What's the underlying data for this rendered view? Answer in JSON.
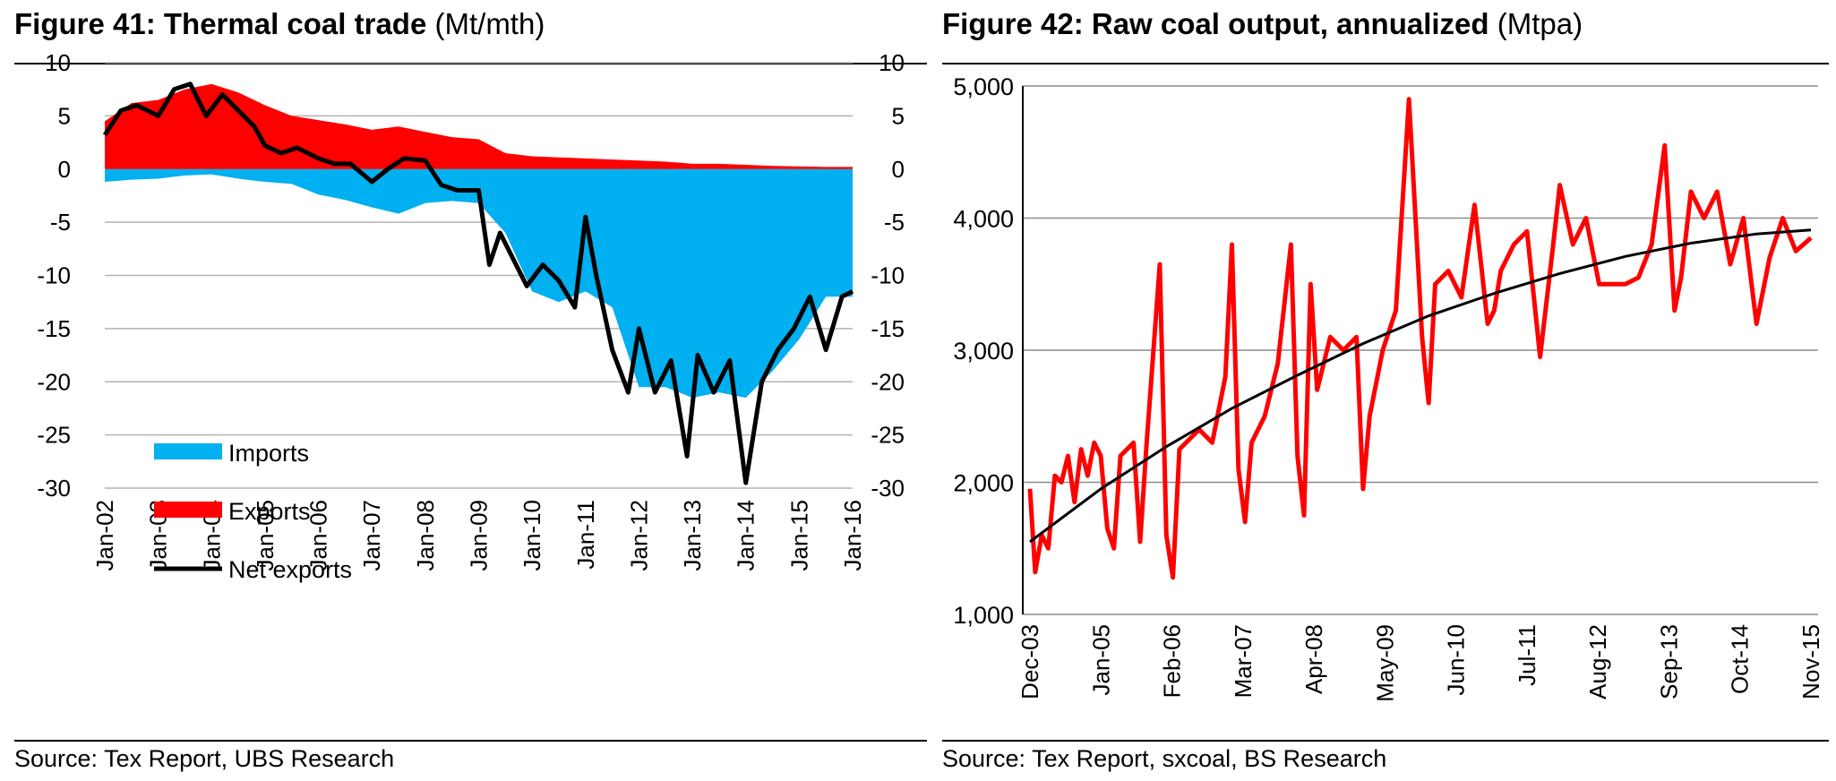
{
  "chart_data": [
    {
      "type": "area",
      "figure_label": "Figure 41:",
      "title": "Thermal coal trade",
      "unit": "(Mt/mth)",
      "source": "Source:  Tex Report, UBS Research",
      "ylim": [
        -30,
        10
      ],
      "y_ticks": [
        "10",
        "5",
        "0",
        "-5",
        "-10",
        "-15",
        "-20",
        "-25",
        "-30"
      ],
      "y_tick_values": [
        10,
        5,
        0,
        -5,
        -10,
        -15,
        -20,
        -25,
        -30
      ],
      "x_tick_labels": [
        "Jan-02",
        "Jan-03",
        "Jan-04",
        "Jan-05",
        "Jan-06",
        "Jan-07",
        "Jan-08",
        "Jan-09",
        "Jan-10",
        "Jan-11",
        "Jan-12",
        "Jan-13",
        "Jan-14",
        "Jan-15",
        "Jan-16"
      ],
      "x_range": [
        2002,
        2016
      ],
      "grid": true,
      "legend_position": "bottom-left",
      "colors": {
        "imports": "#00b0f0",
        "exports": "#ff0000",
        "net_exports": "#000000"
      },
      "series": [
        {
          "name": "Imports",
          "kind": "area",
          "x": [
            2002.0,
            2002.5,
            2003.0,
            2003.5,
            2004.0,
            2004.5,
            2005.0,
            2005.5,
            2006.0,
            2006.5,
            2007.0,
            2007.5,
            2008.0,
            2008.5,
            2009.0,
            2009.5,
            2010.0,
            2010.5,
            2011.0,
            2011.5,
            2012.0,
            2012.5,
            2013.0,
            2013.5,
            2014.0,
            2014.5,
            2015.0,
            2015.5,
            2016.0
          ],
          "values": [
            -1.2,
            -1.0,
            -0.9,
            -0.6,
            -0.5,
            -0.9,
            -1.2,
            -1.4,
            -2.4,
            -2.9,
            -3.6,
            -4.2,
            -3.2,
            -3.0,
            -3.2,
            -6.0,
            -11.5,
            -12.5,
            -11.5,
            -13.0,
            -20.5,
            -20.5,
            -21.5,
            -21.0,
            -21.5,
            -19.0,
            -16.0,
            -12.0,
            -12.0
          ]
        },
        {
          "name": "Exports",
          "kind": "area",
          "x": [
            2002.0,
            2002.5,
            2003.0,
            2003.5,
            2004.0,
            2004.5,
            2005.0,
            2005.5,
            2006.0,
            2006.5,
            2007.0,
            2007.5,
            2008.0,
            2008.5,
            2009.0,
            2009.5,
            2010.0,
            2010.5,
            2011.0,
            2011.5,
            2012.0,
            2012.5,
            2013.0,
            2013.5,
            2014.0,
            2014.5,
            2015.0,
            2015.5,
            2016.0
          ],
          "values": [
            4.5,
            6.2,
            6.5,
            7.5,
            8.0,
            7.2,
            6.0,
            5.0,
            4.6,
            4.2,
            3.7,
            4.0,
            3.5,
            3.0,
            2.8,
            1.5,
            1.2,
            1.1,
            1.0,
            0.9,
            0.8,
            0.7,
            0.5,
            0.5,
            0.4,
            0.3,
            0.25,
            0.2,
            0.2
          ]
        },
        {
          "name": "Net exports",
          "kind": "line",
          "x": [
            2002.0,
            2002.3,
            2002.6,
            2003.0,
            2003.3,
            2003.6,
            2003.9,
            2004.2,
            2004.5,
            2004.8,
            2005.0,
            2005.3,
            2005.6,
            2006.0,
            2006.3,
            2006.6,
            2007.0,
            2007.3,
            2007.6,
            2008.0,
            2008.3,
            2008.6,
            2009.0,
            2009.2,
            2009.4,
            2009.6,
            2009.9,
            2010.2,
            2010.5,
            2010.8,
            2011.0,
            2011.2,
            2011.5,
            2011.8,
            2012.0,
            2012.3,
            2012.6,
            2012.9,
            2013.1,
            2013.4,
            2013.7,
            2014.0,
            2014.3,
            2014.6,
            2014.9,
            2015.2,
            2015.5,
            2015.8,
            2016.0
          ],
          "values": [
            3.2,
            5.5,
            6.0,
            5.0,
            7.5,
            8.0,
            5.0,
            7.0,
            5.5,
            4.0,
            2.2,
            1.5,
            2.0,
            1.0,
            0.5,
            0.5,
            -1.2,
            0.0,
            1.0,
            0.8,
            -1.5,
            -2.0,
            -2.0,
            -9.0,
            -6.0,
            -8.0,
            -11.0,
            -9.0,
            -10.5,
            -13.0,
            -4.5,
            -10.0,
            -17.0,
            -21.0,
            -15.0,
            -21.0,
            -18.0,
            -27.0,
            -17.5,
            -21.0,
            -18.0,
            -29.5,
            -20.0,
            -17.0,
            -15.0,
            -12.0,
            -17.0,
            -12.0,
            -11.5
          ]
        }
      ]
    },
    {
      "type": "line",
      "figure_label": "Figure 42:",
      "title": "Raw coal output, annualized",
      "unit": "(Mtpa)",
      "source": "Source:  Tex Report, sxcoal, BS Research",
      "ylim": [
        1000,
        5000
      ],
      "y_ticks": [
        "5,000",
        "4,000",
        "3,000",
        "2,000",
        "1,000"
      ],
      "y_tick_values": [
        5000,
        4000,
        3000,
        2000,
        1000
      ],
      "x_tick_labels": [
        "Dec-03",
        "Jan-05",
        "Feb-06",
        "Mar-07",
        "Apr-08",
        "May-09",
        "Jun-10",
        "Jul-11",
        "Aug-12",
        "Sep-13",
        "Oct-14",
        "Nov-15"
      ],
      "x_range": [
        2003.92,
        2015.83
      ],
      "grid": true,
      "colors": {
        "output": "#ff0000",
        "trend": "#000000"
      },
      "series": [
        {
          "name": "Raw coal output",
          "kind": "line",
          "x": [
            2003.92,
            2004.0,
            2004.1,
            2004.2,
            2004.3,
            2004.4,
            2004.5,
            2004.6,
            2004.7,
            2004.8,
            2004.9,
            2005.0,
            2005.1,
            2005.2,
            2005.3,
            2005.5,
            2005.6,
            2005.7,
            2005.9,
            2006.0,
            2006.1,
            2006.2,
            2006.3,
            2006.5,
            2006.7,
            2006.9,
            2007.0,
            2007.1,
            2007.2,
            2007.3,
            2007.5,
            2007.7,
            2007.9,
            2008.0,
            2008.1,
            2008.2,
            2008.3,
            2008.5,
            2008.7,
            2008.9,
            2009.0,
            2009.1,
            2009.3,
            2009.5,
            2009.7,
            2009.9,
            2010.0,
            2010.1,
            2010.3,
            2010.5,
            2010.7,
            2010.9,
            2011.0,
            2011.1,
            2011.3,
            2011.5,
            2011.7,
            2011.9,
            2012.0,
            2012.2,
            2012.4,
            2012.6,
            2012.8,
            2013.0,
            2013.2,
            2013.4,
            2013.6,
            2013.75,
            2013.85,
            2014.0,
            2014.2,
            2014.4,
            2014.6,
            2014.8,
            2015.0,
            2015.2,
            2015.4,
            2015.6,
            2015.83
          ],
          "values": [
            1950,
            1320,
            1600,
            1500,
            2050,
            2000,
            2200,
            1850,
            2250,
            2050,
            2300,
            2200,
            1650,
            1500,
            2200,
            2300,
            1550,
            2300,
            3650,
            1600,
            1280,
            2250,
            2300,
            2400,
            2300,
            2800,
            3800,
            2100,
            1700,
            2300,
            2500,
            2900,
            3800,
            2200,
            1750,
            3500,
            2700,
            3100,
            3000,
            3100,
            1950,
            2500,
            3000,
            3300,
            4900,
            3100,
            2600,
            3500,
            3600,
            3400,
            4100,
            3200,
            3300,
            3600,
            3800,
            3900,
            2950,
            3800,
            4250,
            3800,
            4000,
            3500,
            3500,
            3500,
            3550,
            3800,
            4550,
            3300,
            3550,
            4200,
            4000,
            4200,
            3650,
            4000,
            3200,
            3700,
            4000,
            3750,
            3850
          ]
        },
        {
          "name": "Trend",
          "kind": "curve",
          "x": [
            2003.92,
            2005.0,
            2006.0,
            2007.0,
            2008.0,
            2009.0,
            2010.0,
            2011.0,
            2012.0,
            2013.0,
            2014.0,
            2015.0,
            2015.83
          ],
          "values": [
            1550,
            1950,
            2270,
            2560,
            2810,
            3050,
            3260,
            3430,
            3580,
            3710,
            3810,
            3880,
            3910
          ]
        }
      ]
    }
  ]
}
